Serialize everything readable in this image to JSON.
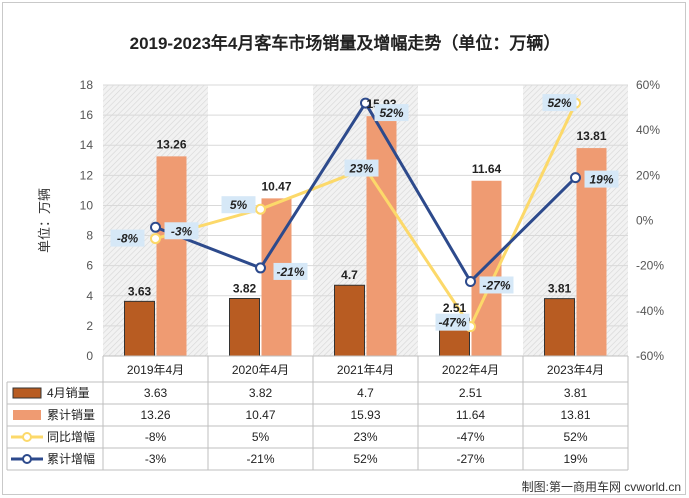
{
  "chart_data": {
    "type": "bar",
    "title": "2019-2023年4月客车市场销量及增幅走势（单位：万辆）",
    "categories": [
      "2019年4月",
      "2020年4月",
      "2021年4月",
      "2022年4月",
      "2023年4月"
    ],
    "ylabel": "单位：万辆",
    "ylim": [
      0,
      18
    ],
    "yticks": [
      "0",
      "2",
      "4",
      "6",
      "8",
      "10",
      "12",
      "14",
      "16",
      "18"
    ],
    "y2lim": [
      -60,
      60
    ],
    "y2ticks": [
      "-60%",
      "-40%",
      "-20%",
      "0%",
      "20%",
      "40%",
      "60%"
    ],
    "series": [
      {
        "name": "4月销量",
        "kind": "bar",
        "color": "#b85c22",
        "values": [
          3.63,
          3.82,
          4.7,
          2.51,
          3.81
        ],
        "labels": [
          "3.63",
          "3.82",
          "4.7",
          "2.51",
          "3.81"
        ]
      },
      {
        "name": "累计销量",
        "kind": "bar",
        "color": "#ef9b72",
        "values": [
          13.26,
          10.47,
          15.93,
          11.64,
          13.81
        ],
        "labels": [
          "13.26",
          "10.47",
          "15.93",
          "11.64",
          "13.81"
        ]
      },
      {
        "name": "同比增幅",
        "kind": "line",
        "axis": "right",
        "color": "#fcd96a",
        "values": [
          -8,
          5,
          23,
          -47,
          52
        ],
        "labels": [
          "-8%",
          "5%",
          "23%",
          "-47%",
          "52%"
        ]
      },
      {
        "name": "累计增幅",
        "kind": "line",
        "axis": "right",
        "color": "#2d4a8c",
        "values": [
          -3,
          -21,
          52,
          -27,
          19
        ],
        "labels": [
          "-3%",
          "-21%",
          "52%",
          "-27%",
          "19%"
        ]
      }
    ],
    "grid": true,
    "legend": "data-table-below"
  },
  "watermark": "制图:第一商用车网 cvworld.cn"
}
